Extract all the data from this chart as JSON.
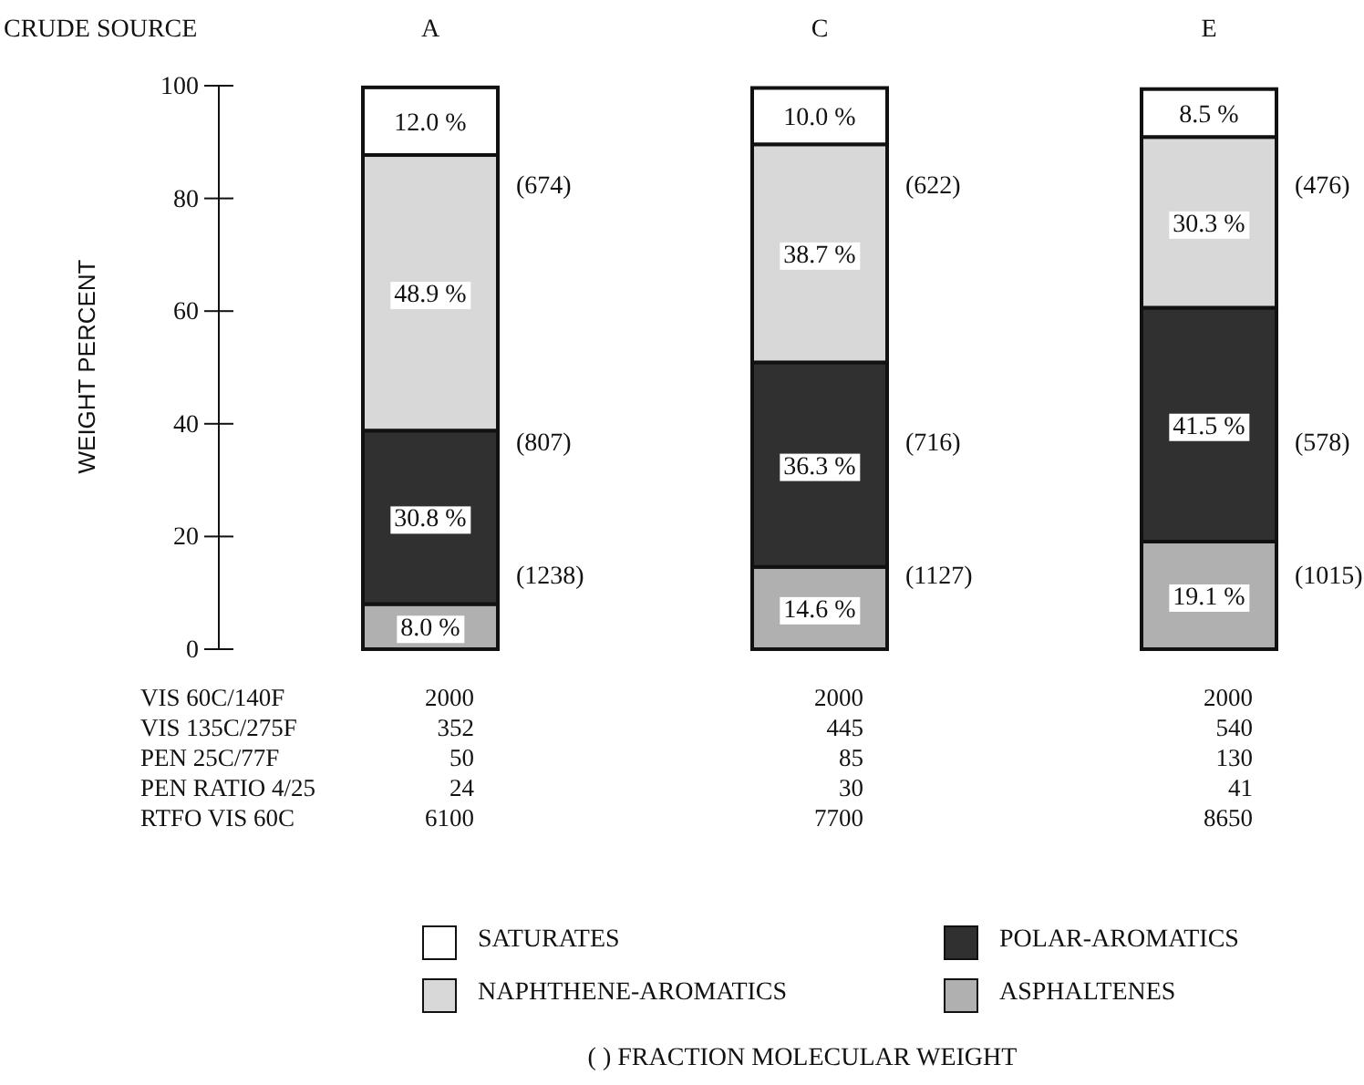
{
  "chart_data": {
    "type": "bar",
    "stacked": true,
    "ylabel": "WEIGHT PERCENT",
    "categories": [
      "A",
      "C",
      "E"
    ],
    "ylim": [
      0,
      100
    ],
    "yticks": [
      0,
      20,
      40,
      60,
      80,
      100
    ],
    "grid": false,
    "legend": "bottom",
    "data_labels": true,
    "series": [
      {
        "name": "ASPHALTENES",
        "color": "#b0b0b0",
        "values": [
          8.0,
          14.6,
          19.1
        ],
        "value_labels": [
          "8.0 %",
          "14.6 %",
          "19.1 %"
        ]
      },
      {
        "name": "POLAR-AROMATICS",
        "color": "#303030",
        "values": [
          30.8,
          36.3,
          41.5
        ],
        "value_labels": [
          "30.8 %",
          "36.3 %",
          "41.5 %"
        ]
      },
      {
        "name": "NAPHTHENE-AROMATICS",
        "color": "#d8d8d8",
        "values": [
          48.9,
          38.7,
          30.3
        ],
        "value_labels": [
          "48.9 %",
          "38.7 %",
          "30.3 %"
        ]
      },
      {
        "name": "SATURATES",
        "color": "#ffffff",
        "values": [
          12.0,
          10.0,
          8.5
        ],
        "value_labels": [
          "12.0 %",
          "10.0 %",
          "8.5 %"
        ]
      }
    ],
    "annotations": [
      "CRUDE SOURCE",
      "VIS 60C/140F",
      "2000",
      "2000",
      "2000",
      "VIS 135C/275F",
      "352",
      "445",
      "540",
      "PEN 25C/77F",
      "50",
      "85",
      "130",
      "PEN RATIO 4/25",
      "24",
      "30",
      "41",
      "RTFO VIS 60C",
      "6100",
      "7700",
      "8650",
      "( ) FRACTION MOLECULAR WEIGHT",
      "(674)",
      "(807)",
      "(1238)",
      "(622)",
      "(716)",
      "(1127)",
      "(476)",
      "(578)",
      "(1015)"
    ]
  }
}
